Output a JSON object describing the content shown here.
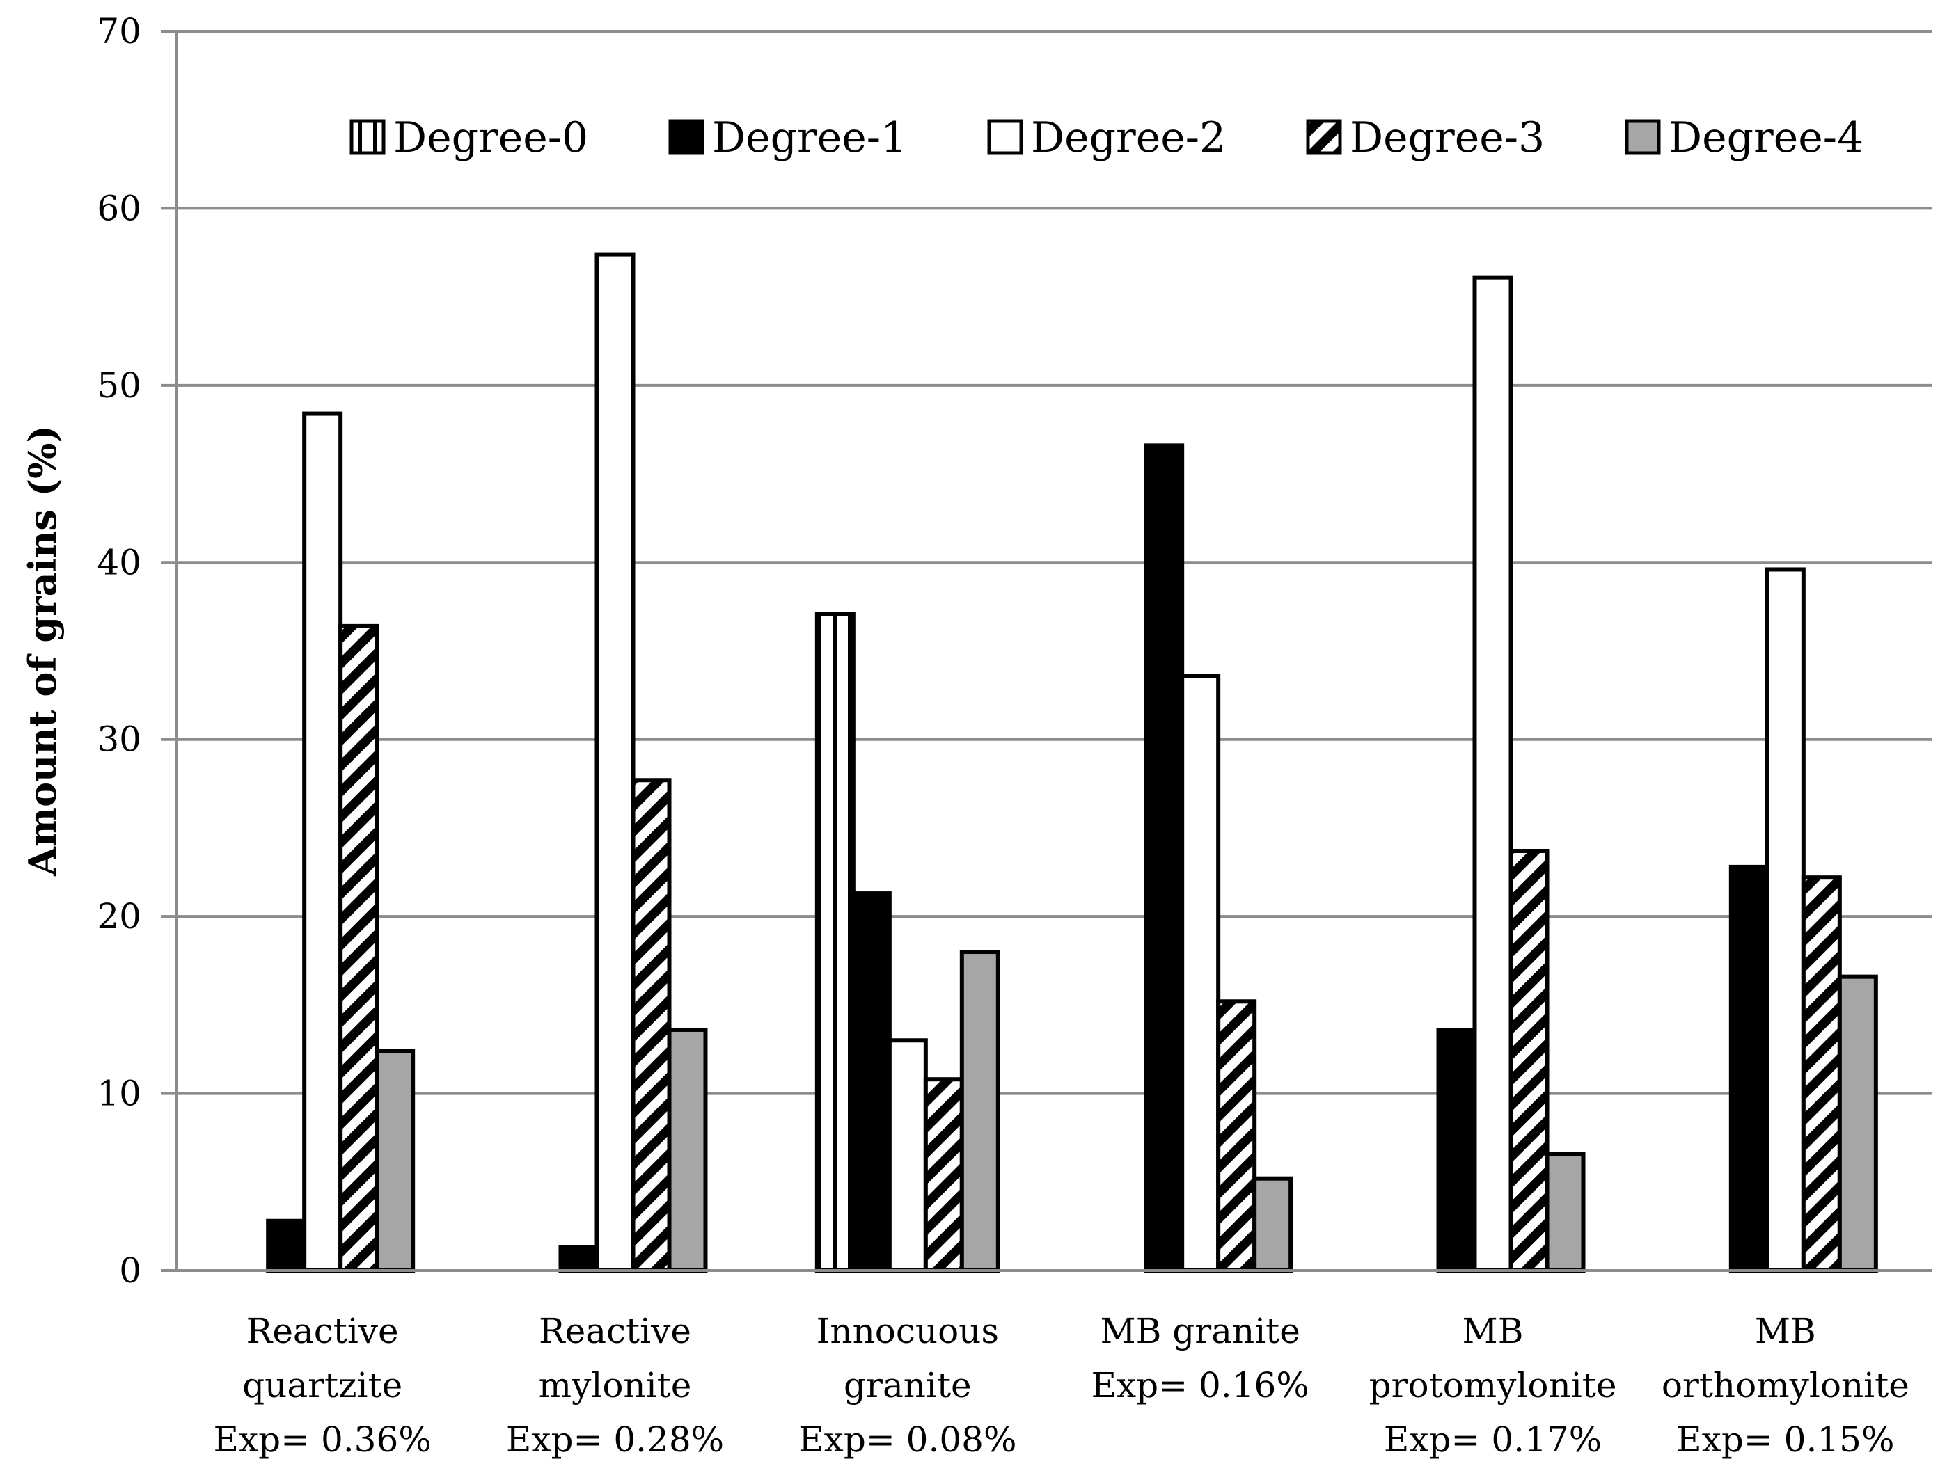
{
  "chart_data": {
    "type": "bar",
    "title": "",
    "xlabel": "",
    "ylabel": "Amount of grains (%)",
    "ylim": [
      0,
      70
    ],
    "yticks": [
      0,
      10,
      20,
      30,
      40,
      50,
      60,
      70
    ],
    "grid": true,
    "legend_position": "top",
    "categories": [
      [
        "Reactive",
        "quartzite",
        "Exp= 0.36%"
      ],
      [
        "Reactive",
        "mylonite",
        "Exp= 0.28%"
      ],
      [
        "Innocuous",
        "granite",
        "Exp= 0.08%"
      ],
      [
        "MB granite",
        "Exp= 0.16%"
      ],
      [
        "MB",
        "protomylonite",
        "Exp= 0.17%"
      ],
      [
        "MB",
        "orthomylonite",
        "Exp= 0.15%"
      ]
    ],
    "series": [
      {
        "name": "Degree-0",
        "fill": "vertical-stripes",
        "values": [
          0,
          0,
          37.1,
          0,
          0,
          0
        ]
      },
      {
        "name": "Degree-1",
        "fill": "#000000",
        "values": [
          2.8,
          1.3,
          21.3,
          46.6,
          13.6,
          22.8
        ]
      },
      {
        "name": "Degree-2",
        "fill": "#ffffff",
        "values": [
          48.4,
          57.4,
          13.0,
          33.6,
          56.1,
          39.6
        ]
      },
      {
        "name": "Degree-3",
        "fill": "diagonal-stripes",
        "values": [
          36.4,
          27.7,
          10.8,
          15.2,
          23.7,
          22.2
        ]
      },
      {
        "name": "Degree-4",
        "fill": "#a6a6a6",
        "values": [
          12.4,
          13.6,
          18.0,
          5.2,
          6.6,
          16.6
        ]
      }
    ]
  }
}
